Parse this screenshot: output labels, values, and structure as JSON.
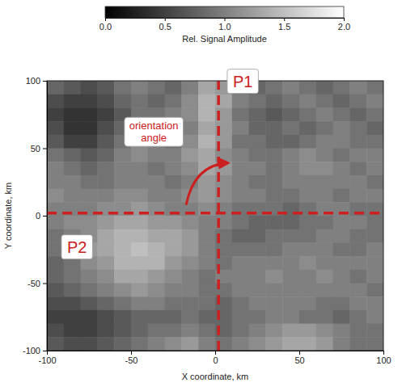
{
  "chart_data": {
    "type": "heatmap",
    "x_label": "X coordinate, km",
    "y_label": "Y coordinate, km",
    "xlim": [
      -100,
      100
    ],
    "ylim": [
      -100,
      100
    ],
    "xticks": [
      -100,
      -50,
      0,
      50,
      100
    ],
    "yticks": [
      -100,
      -50,
      0,
      50,
      100
    ],
    "colorbar": {
      "label": "Rel. Signal Amplitude",
      "range": [
        0,
        2
      ],
      "ticks": [
        {
          "value": 0,
          "label": "0.0"
        },
        {
          "value": 0.5,
          "label": "0.5"
        },
        {
          "value": 1,
          "label": "1.0"
        },
        {
          "value": 1.5,
          "label": "1.5"
        },
        {
          "value": 2,
          "label": "2.0"
        }
      ]
    },
    "x": [
      -95,
      -85,
      -75,
      -65,
      -55,
      -45,
      -35,
      -25,
      -15,
      -5,
      5,
      15,
      25,
      35,
      45,
      55,
      65,
      75,
      85,
      95
    ],
    "y": [
      95,
      85,
      75,
      65,
      55,
      45,
      35,
      25,
      15,
      5,
      -5,
      -15,
      -25,
      -35,
      -45,
      -55,
      -65,
      -75,
      -85,
      -95
    ],
    "cells": [
      [
        0.8,
        0.7,
        0.6,
        0.7,
        0.9,
        1.0,
        0.9,
        0.8,
        1.0,
        1.3,
        1.2,
        0.9,
        0.8,
        0.9,
        1.0,
        0.9,
        0.8,
        0.9,
        1.0,
        0.9
      ],
      [
        0.6,
        0.5,
        0.5,
        0.6,
        0.8,
        0.9,
        0.8,
        0.9,
        1.1,
        1.4,
        1.3,
        1.0,
        0.9,
        0.8,
        0.9,
        1.0,
        0.9,
        0.8,
        0.9,
        1.0
      ],
      [
        0.5,
        0.4,
        0.4,
        0.5,
        0.7,
        0.9,
        0.9,
        1.0,
        1.1,
        1.4,
        1.2,
        0.9,
        0.8,
        0.7,
        0.8,
        0.9,
        1.0,
        0.9,
        0.8,
        0.9
      ],
      [
        0.6,
        0.4,
        0.4,
        0.6,
        0.8,
        1.0,
        1.0,
        0.9,
        1.0,
        1.3,
        1.2,
        1.0,
        0.8,
        0.8,
        0.9,
        0.8,
        0.9,
        1.0,
        0.9,
        0.8
      ],
      [
        0.7,
        0.5,
        0.5,
        0.7,
        0.9,
        1.1,
        1.0,
        0.9,
        1.1,
        1.4,
        1.2,
        0.9,
        0.9,
        0.8,
        0.8,
        0.9,
        1.0,
        1.0,
        0.9,
        0.9
      ],
      [
        0.9,
        0.8,
        0.7,
        0.8,
        1.0,
        1.1,
        1.0,
        1.0,
        1.2,
        1.3,
        1.1,
        1.0,
        0.9,
        0.9,
        1.0,
        1.1,
        1.0,
        0.9,
        1.0,
        1.0
      ],
      [
        1.0,
        0.9,
        0.8,
        0.9,
        1.0,
        1.0,
        0.9,
        1.0,
        1.1,
        1.3,
        1.2,
        1.0,
        1.0,
        0.9,
        1.0,
        1.1,
        1.1,
        1.0,
        0.9,
        1.0
      ],
      [
        1.0,
        1.0,
        0.9,
        0.9,
        1.0,
        1.0,
        1.0,
        0.9,
        1.0,
        1.2,
        1.1,
        1.0,
        0.9,
        0.9,
        1.0,
        1.0,
        1.0,
        1.0,
        1.0,
        0.9
      ],
      [
        1.1,
        1.0,
        1.0,
        1.0,
        1.1,
        1.1,
        1.0,
        1.0,
        1.1,
        1.2,
        1.1,
        1.0,
        1.0,
        0.9,
        0.9,
        1.0,
        1.0,
        0.9,
        1.0,
        1.0
      ],
      [
        1.0,
        1.0,
        1.0,
        1.1,
        1.1,
        1.2,
        1.1,
        1.0,
        1.0,
        1.1,
        1.0,
        0.9,
        0.9,
        0.9,
        0.8,
        0.9,
        1.0,
        1.0,
        0.9,
        0.9
      ],
      [
        1.0,
        1.1,
        1.1,
        1.2,
        1.3,
        1.3,
        1.2,
        1.2,
        1.1,
        1.0,
        1.0,
        0.9,
        0.8,
        0.8,
        0.8,
        0.9,
        0.9,
        1.0,
        1.0,
        0.9
      ],
      [
        0.9,
        1.0,
        1.1,
        1.3,
        1.4,
        1.4,
        1.3,
        1.3,
        1.2,
        1.0,
        0.9,
        0.8,
        0.8,
        0.9,
        0.9,
        0.9,
        1.0,
        1.0,
        0.9,
        0.9
      ],
      [
        0.9,
        1.0,
        1.2,
        1.3,
        1.4,
        1.5,
        1.4,
        1.3,
        1.2,
        1.0,
        0.9,
        0.9,
        0.9,
        0.9,
        1.0,
        1.0,
        1.0,
        0.9,
        0.9,
        1.0
      ],
      [
        0.8,
        0.9,
        1.1,
        1.2,
        1.4,
        1.4,
        1.4,
        1.2,
        1.1,
        1.0,
        0.9,
        1.0,
        1.0,
        1.0,
        1.0,
        1.1,
        1.0,
        1.0,
        1.0,
        1.0
      ],
      [
        0.8,
        0.9,
        1.0,
        1.1,
        1.3,
        1.3,
        1.2,
        1.1,
        1.0,
        0.9,
        1.0,
        1.0,
        1.0,
        1.1,
        1.0,
        1.0,
        1.1,
        1.0,
        0.9,
        1.0
      ],
      [
        0.7,
        0.8,
        0.9,
        1.0,
        1.1,
        1.2,
        1.1,
        1.0,
        1.0,
        0.9,
        0.9,
        1.0,
        1.0,
        1.0,
        1.0,
        1.0,
        1.0,
        1.0,
        1.0,
        0.9
      ],
      [
        0.6,
        0.6,
        0.7,
        0.8,
        0.9,
        1.0,
        1.0,
        0.9,
        0.9,
        0.9,
        0.8,
        0.9,
        1.0,
        1.0,
        1.0,
        1.0,
        0.9,
        0.9,
        1.0,
        1.0
      ],
      [
        0.5,
        0.5,
        0.5,
        0.6,
        0.7,
        0.8,
        0.8,
        0.8,
        0.9,
        0.8,
        0.8,
        0.9,
        0.9,
        1.0,
        1.0,
        0.9,
        0.9,
        0.8,
        0.9,
        1.0
      ],
      [
        0.6,
        0.5,
        0.5,
        0.6,
        0.7,
        0.8,
        0.9,
        0.9,
        1.0,
        0.9,
        0.8,
        0.9,
        1.0,
        1.1,
        1.2,
        1.2,
        1.1,
        1.0,
        0.9,
        0.9
      ],
      [
        0.7,
        0.6,
        0.6,
        0.7,
        0.8,
        0.9,
        1.0,
        1.1,
        1.2,
        1.0,
        0.9,
        1.0,
        1.1,
        1.2,
        1.3,
        1.3,
        1.2,
        1.0,
        0.9,
        0.9
      ]
    ],
    "lines": [
      {
        "label": "P1",
        "orientation": "vertical",
        "value": 2,
        "color": "#cc2020",
        "line_style": "dashed"
      },
      {
        "label": "P2",
        "orientation": "horizontal",
        "value": 2,
        "color": "#cc2020",
        "line_style": "dashed"
      }
    ],
    "annotations": [
      {
        "text": "orientation angle"
      }
    ]
  }
}
